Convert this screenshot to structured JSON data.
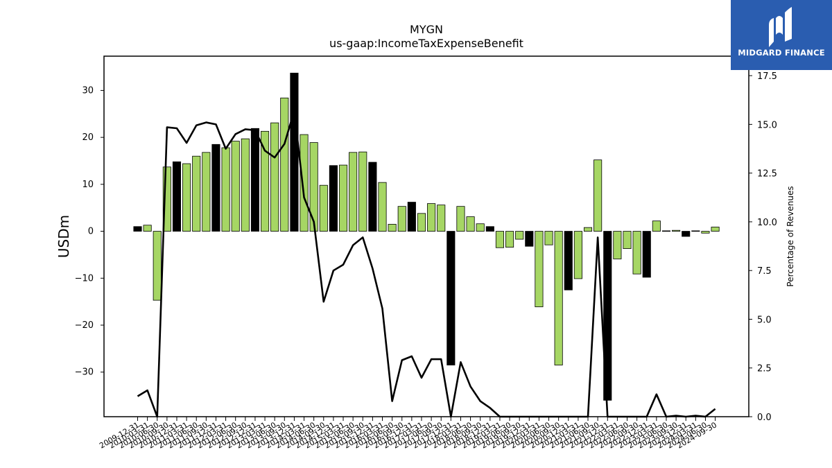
{
  "header": {
    "title": "MYGN",
    "subtitle": "us-gaap:IncomeTaxExpenseBenefit"
  },
  "logo": {
    "text": "MIDGARD FINANCE",
    "color": "#2a5db0"
  },
  "colors": {
    "bar_black": "#000000",
    "bar_green": "#a6d664",
    "line": "#000000"
  },
  "chart_data": {
    "type": "bar",
    "ylabel": "USDm",
    "y2label": "Percentage of Revenues",
    "ylim": [
      -39.5,
      37.3
    ],
    "y2lim": [
      0.0,
      18.5
    ],
    "yticks": [
      -30,
      -20,
      -10,
      0,
      10,
      20,
      30
    ],
    "y2ticks": [
      0.0,
      2.5,
      5.0,
      7.5,
      10.0,
      12.5,
      15.0,
      17.5
    ],
    "x_labels": [
      "2009-12-31",
      "2010-03-31",
      "2010-06-30",
      "2010-09-30",
      "2010-12-31",
      "2011-03-31",
      "2011-06-30",
      "2011-09-30",
      "2011-12-31",
      "2012-03-31",
      "2012-06-30",
      "2012-09-30",
      "2012-12-31",
      "2013-03-31",
      "2013-06-30",
      "2013-09-30",
      "2013-12-31",
      "2014-03-31",
      "2014-06-30",
      "2014-09-30",
      "2014-12-31",
      "2015-03-31",
      "2015-06-30",
      "2015-09-30",
      "2015-12-31",
      "2016-03-31",
      "2016-06-30",
      "2016-09-30",
      "2016-12-31",
      "2017-03-31",
      "2017-06-30",
      "2017-09-30",
      "2017-12-31",
      "2018-03-31",
      "2018-06-30",
      "2018-09-30",
      "2018-12-31",
      "2019-03-31",
      "2019-06-30",
      "2019-09-30",
      "2019-12-31",
      "2020-03-31",
      "2020-06-30",
      "2020-09-30",
      "2020-12-31",
      "2021-03-31",
      "2021-06-30",
      "2021-09-30",
      "2021-12-31",
      "2022-03-31",
      "2022-06-30",
      "2022-09-30",
      "2022-12-31",
      "2023-03-31",
      "2023-06-30",
      "2023-09-30",
      "2023-12-31",
      "2024-03-31",
      "2024-06-30",
      "2024-09-30"
    ],
    "bar_colors": [
      "black",
      "green",
      "green",
      "green",
      "black",
      "green",
      "green",
      "green",
      "black",
      "green",
      "green",
      "green",
      "black",
      "green",
      "green",
      "green",
      "black",
      "green",
      "green",
      "green",
      "black",
      "green",
      "green",
      "green",
      "black",
      "green",
      "green",
      "green",
      "black",
      "green",
      "green",
      "green",
      "black",
      "green",
      "green",
      "green",
      "black",
      "green",
      "green",
      "green",
      "black",
      "green",
      "green",
      "green",
      "black",
      "green",
      "green",
      "green",
      "black",
      "green",
      "green",
      "green",
      "black",
      "green",
      "green",
      "green",
      "black",
      "green",
      "green",
      "green"
    ],
    "series": [
      {
        "type": "bar",
        "values": [
          1.0,
          1.3,
          -14.7,
          13.7,
          14.8,
          14.4,
          16.0,
          16.8,
          18.5,
          17.8,
          19.2,
          19.7,
          21.9,
          21.3,
          23.1,
          28.4,
          33.7,
          20.6,
          18.9,
          9.8,
          14.0,
          14.1,
          16.8,
          16.9,
          14.7,
          10.4,
          1.5,
          5.3,
          6.2,
          3.8,
          5.9,
          5.6,
          -28.5,
          5.3,
          3.1,
          1.6,
          1.0,
          -3.5,
          -3.4,
          -1.7,
          -3.2,
          -16.1,
          -2.9,
          -28.5,
          -12.5,
          -10.1,
          0.8,
          15.2,
          -36.0,
          -5.9,
          -3.7,
          -9.1,
          -9.8,
          2.2,
          0.1,
          0.2,
          -1.1,
          0.1,
          -0.4,
          0.9
        ]
      },
      {
        "type": "line",
        "values": [
          1.05,
          1.35,
          0.0,
          14.85,
          14.8,
          14.05,
          14.95,
          15.1,
          15.0,
          13.75,
          14.5,
          14.75,
          14.7,
          13.65,
          13.3,
          14.0,
          15.7,
          11.25,
          10.0,
          5.9,
          7.5,
          7.8,
          8.8,
          9.2,
          7.6,
          5.55,
          0.8,
          2.9,
          3.1,
          2.0,
          2.95,
          2.95,
          0.0,
          2.8,
          1.55,
          0.8,
          0.45,
          0.0,
          0.0,
          0.0,
          0.0,
          0.0,
          0.0,
          0.0,
          0.0,
          0.0,
          0.0,
          9.2,
          0.0,
          0.0,
          0.0,
          0.0,
          0.0,
          1.15,
          0.0,
          0.05,
          0.0,
          0.05,
          0.0,
          0.4
        ]
      }
    ]
  }
}
